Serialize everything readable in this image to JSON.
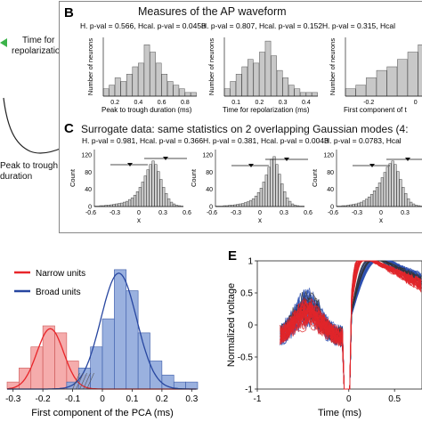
{
  "panelA": {
    "label_repol": [
      "Time for",
      "repolarization"
    ],
    "label_peak": [
      "Peak to trough",
      "duration"
    ]
  },
  "panelB": {
    "letter": "B",
    "title": "Measures of the AP waveform",
    "stats": [
      "H. p-val = 0.566, Hcal. p-val = 0.0458",
      "H. p-val = 0.807, Hcal. p-val = 0.152",
      "H. p-val = 0.315, Hcal"
    ],
    "ylabel": "Number of neurons",
    "xlabels": [
      "Peak to trough duration (ms)",
      "Time for repolarization (ms)",
      "First component of t"
    ]
  },
  "panelC": {
    "letter": "C",
    "title": "Surrogate data: same statistics on 2 overlapping Gaussian modes (4:",
    "stats": [
      "H. p-val = 0.981, Hcal. p-val = 0.366",
      "H. p-val = 0.381, Hcal. p-val = 0.0043",
      "H. p-val = 0.0783, Hcal"
    ],
    "ylabel": "Count",
    "xlabel": "x"
  },
  "panelD": {
    "legend": [
      "Narrow units",
      "Broad units"
    ],
    "xlabel": "First component of the PCA (ms)",
    "colors": {
      "narrow": "#e8262a",
      "broad": "#2746a0",
      "narrow_fill": "#f4a3a3",
      "broad_fill": "#8fa9dc"
    }
  },
  "panelE": {
    "letter": "E",
    "ylabel": "Normalized voltage",
    "xlabel": "Time (ms)"
  },
  "chart_data": [
    {
      "type": "bar",
      "title": "",
      "xlabel": "First component of the PCA (ms)",
      "x": [
        -0.3,
        -0.26,
        -0.22,
        -0.18,
        -0.14,
        -0.1,
        -0.06,
        -0.02,
        0.02,
        0.06,
        0.1,
        0.14,
        0.18,
        0.22,
        0.26,
        0.3
      ],
      "series": [
        {
          "name": "Narrow units",
          "values": [
            1,
            3,
            6,
            9,
            8,
            4,
            2,
            0,
            0,
            0,
            0,
            0,
            0,
            0,
            0,
            0
          ]
        },
        {
          "name": "Broad units",
          "values": [
            0,
            0,
            0,
            0,
            0,
            1,
            3,
            6,
            10,
            17,
            14,
            8,
            4,
            2,
            1,
            1
          ]
        }
      ],
      "xticks": [
        "-0.3",
        "-0.2",
        "-0.1",
        "0",
        "0.1",
        "0.2",
        "0.3"
      ]
    },
    {
      "type": "line",
      "title": "",
      "xlabel": "Time (ms)",
      "ylabel": "Normalized voltage",
      "xticks": [
        "-1",
        "0",
        "0.5"
      ],
      "yticks": [
        "1",
        "0.5",
        "0",
        "-0.5",
        "-1"
      ],
      "ylim": [
        -1,
        1
      ],
      "xlim": [
        -1,
        0.8
      ]
    },
    {
      "type": "bar",
      "title": "Measures of the AP waveform",
      "ylabel": "Number of neurons",
      "series": [
        {
          "xlabel": "Peak to trough duration (ms)",
          "xticks": [
            "0.2",
            "0.4",
            "0.6",
            "0.8"
          ],
          "values": [
            2,
            3,
            5,
            4,
            6,
            8,
            9,
            14,
            12,
            9,
            6,
            4,
            3,
            2,
            1,
            1
          ]
        },
        {
          "xlabel": "Time for repolarization (ms)",
          "xticks": [
            "0.1",
            "0.2",
            "0.3",
            "0.4"
          ],
          "values": [
            2,
            4,
            6,
            8,
            10,
            9,
            12,
            15,
            11,
            7,
            5,
            3,
            2,
            1,
            1,
            1
          ]
        },
        {
          "xlabel": "First component of t",
          "xticks": [
            "-0.2",
            "0"
          ],
          "values": [
            2,
            3,
            5,
            7,
            8,
            10,
            12,
            14,
            11
          ]
        }
      ]
    },
    {
      "type": "bar",
      "title": "Surrogate data: same statistics on 2 overlapping Gaussian modes (4:",
      "ylabel": "Count",
      "xlabel": "x",
      "yticks": [
        "120",
        "80",
        "40",
        "0"
      ],
      "xticks": [
        "-0.6",
        "-0.3",
        "0",
        "0.3",
        "0.6"
      ]
    }
  ]
}
